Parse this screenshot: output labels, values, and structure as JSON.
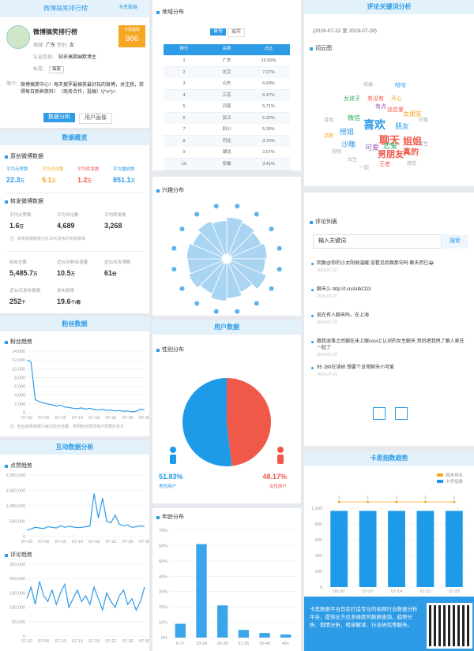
{
  "header": {
    "title": "微博搞笑排行榜",
    "logo": "卡思数据"
  },
  "profile": {
    "name": "微博搞笑排行榜",
    "score_label": "卡思指数",
    "score": 966,
    "region_label": "地域:",
    "region": "广东",
    "gender_label": "性别:",
    "gender": "女",
    "cert_label": "认证信息:",
    "cert": "知名搞笑幽默博主",
    "tag_label": "标签:",
    "tag": "搞笑",
    "intro_label": "简介:",
    "intro": "微博搞笑中心！每天搜罗最搞笑最好玩的微博，关注我，获得每日新鲜笑料！（商务合作，投稿）\\(^o^)/~"
  },
  "tabs": [
    "数据分析",
    "用户画像"
  ],
  "overview": {
    "title": "数据概览",
    "original": {
      "title": "原创微博数据",
      "stats": [
        {
          "label": "平均点赞数",
          "value": "22.3",
          "unit": "万"
        },
        {
          "label": "平均评论数",
          "value": "5.1",
          "unit": "万"
        },
        {
          "label": "平均转发数",
          "value": "1.2",
          "unit": "万"
        },
        {
          "label": "平均播放数",
          "value": "851.1",
          "unit": "万"
        }
      ]
    },
    "repost": {
      "title": "转发微博数据",
      "stats": [
        {
          "label": "平均点赞数",
          "value": "1.6",
          "unit": "万"
        },
        {
          "label": "平均评论数",
          "value": "4,689"
        },
        {
          "label": "平均转发数",
          "value": "3,268"
        }
      ],
      "note": "注：转发微博数据为近30天发布的转发微博"
    },
    "account": {
      "stats": [
        {
          "label": "粉丝总数",
          "value": "5,485.7",
          "unit": "万"
        },
        {
          "label": "近30天粉丝增量",
          "value": "10.5",
          "unit": "万"
        },
        {
          "label": "近30天发博数",
          "value": "61",
          "unit": "份"
        },
        {
          "label": "近30天发布视频",
          "value": "252",
          "unit": "个"
        },
        {
          "label": "发布频率",
          "value": "19.6",
          "unit": "个/周"
        }
      ]
    }
  },
  "fans": {
    "section": "粉丝数据",
    "title": "粉丝趋势",
    "type": "line",
    "color": "#2e9be6",
    "categories": [
      "07-02",
      null,
      null,
      null,
      "07-06",
      null,
      null,
      null,
      "07-10",
      null,
      null,
      null,
      "07-14",
      null,
      null,
      null,
      "07-18",
      null,
      null,
      null,
      "07-22",
      null,
      null,
      null,
      "07-26",
      null,
      null,
      null,
      "07-30"
    ],
    "values": [
      12000,
      11500,
      3000,
      2500,
      2200,
      2000,
      1800,
      1500,
      1700,
      1300,
      1200,
      1000,
      900,
      1100,
      800,
      1000,
      700,
      600,
      800,
      500,
      600,
      400,
      500,
      300,
      400,
      200,
      300,
      800,
      600
    ],
    "ylim": [
      0,
      14000
    ],
    "yticks": [
      0,
      {
        "value": 2000,
        "label": "2,000"
      },
      {
        "value": 4000,
        "label": "4,000"
      },
      {
        "value": 6000,
        "label": "6,000"
      },
      {
        "value": 8000,
        "label": "8,000"
      },
      {
        "value": 10000,
        "label": "10,000"
      },
      {
        "value": 12000,
        "label": "12,000"
      },
      {
        "value": 14000,
        "label": "14,000"
      }
    ],
    "note": "注：粉丝趋势数据为每日粉丝增量，表明粉丝群体用户规模的变化"
  },
  "interaction": {
    "section": "互动数据分析",
    "likes": {
      "title": "点赞趋势",
      "type": "line",
      "color": "#2e9be6",
      "categories": [
        "07-02",
        null,
        null,
        null,
        "07-06",
        null,
        null,
        null,
        "07-10",
        null,
        null,
        null,
        "07-14",
        null,
        null,
        null,
        "07-18",
        null,
        null,
        null,
        "07-22",
        null,
        null,
        null,
        "07-26",
        null,
        null,
        null,
        "07-30"
      ],
      "values": [
        210000,
        250000,
        300000,
        280000,
        260000,
        320000,
        300000,
        280000,
        350000,
        300000,
        330000,
        310000,
        290000,
        300000,
        320000,
        340000,
        1400000,
        600000,
        1250000,
        500000,
        450000,
        700000,
        400000,
        350000,
        380000,
        300000,
        320000,
        350000,
        330000
      ],
      "ylim": [
        0,
        2000000
      ],
      "yticks": [
        0,
        {
          "value": 500000,
          "label": "500,000"
        },
        {
          "value": 1000000,
          "label": "1,000,000"
        },
        {
          "value": 1500000,
          "label": "1,500,000"
        },
        {
          "value": 2000000,
          "label": "2,000,000"
        }
      ]
    },
    "comments": {
      "title": "评论趋势",
      "type": "line",
      "color": "#2e9be6",
      "categories": [
        "07-02",
        null,
        null,
        null,
        "07-06",
        null,
        null,
        null,
        "07-10",
        null,
        null,
        null,
        "07-14",
        null,
        null,
        null,
        "07-18",
        null,
        null,
        null,
        "07-22",
        null,
        null,
        null,
        "07-26",
        null,
        null,
        null,
        "07-30"
      ],
      "values": [
        130000,
        170000,
        110000,
        190000,
        140000,
        120000,
        160000,
        110000,
        150000,
        180000,
        100000,
        130000,
        160000,
        120000,
        140000,
        110000,
        170000,
        130000,
        90000,
        150000,
        120000,
        100000,
        140000,
        160000,
        110000,
        130000,
        90000,
        120000,
        170000
      ],
      "ylim": [
        0,
        250000
      ],
      "yticks": [
        0,
        {
          "value": 50000,
          "label": "50,000"
        },
        {
          "value": 100000,
          "label": "100,000"
        },
        {
          "value": 150000,
          "label": "150,000"
        },
        {
          "value": 200000,
          "label": "200,000"
        },
        {
          "value": 250000,
          "label": "250,000"
        }
      ]
    }
  },
  "region": {
    "title": "地域分布",
    "tabs": [
      "省份",
      "城市"
    ],
    "columns": [
      "排行",
      "名称",
      "占比"
    ],
    "rows": [
      [
        "1",
        "广东",
        "10.60%"
      ],
      [
        "2",
        "北京",
        "7.07%"
      ],
      [
        "3",
        "山东",
        "6.69%"
      ],
      [
        "4",
        "江苏",
        "6.47%"
      ],
      [
        "5",
        "河南",
        "5.71%"
      ],
      [
        "6",
        "浙江",
        "5.32%"
      ],
      [
        "7",
        "四川",
        "5.30%"
      ],
      [
        "8",
        "河北",
        "3.75%"
      ],
      [
        "9",
        "湖北",
        "3.67%"
      ],
      [
        "10",
        "安徽",
        "3.41%"
      ]
    ]
  },
  "interest": {
    "title": "兴趣分布",
    "type": "radial",
    "color": "#a9d4f2",
    "max": 100,
    "values": [
      85,
      80,
      75,
      82,
      78,
      88,
      72,
      80,
      86,
      76,
      84,
      79,
      81,
      74,
      83,
      77
    ]
  },
  "users": {
    "section": "用户数据",
    "gender": {
      "title": "性别分布",
      "type": "pie",
      "names": [
        "男性用户",
        "女性用户"
      ],
      "values": [
        51.83,
        48.17
      ],
      "value_labels": [
        "51.83%",
        "48.17%"
      ],
      "colors": [
        "#1e9be8",
        "#f0584a"
      ]
    },
    "age": {
      "title": "年龄分布",
      "type": "bar",
      "color": "#3aa5ea",
      "categories": [
        "6-17",
        "18-24",
        "25-30",
        "31-35",
        "36-40",
        "40+"
      ],
      "values": [
        9,
        61,
        21,
        5,
        3,
        2
      ],
      "ylim": [
        0,
        70
      ],
      "yticks": [
        {
          "value": 0,
          "label": "0%"
        },
        {
          "value": 10,
          "label": "10%"
        },
        {
          "value": 20,
          "label": "20%"
        },
        {
          "value": 30,
          "label": "30%"
        },
        {
          "value": 40,
          "label": "40%"
        },
        {
          "value": 50,
          "label": "50%"
        },
        {
          "value": 60,
          "label": "60%"
        },
        {
          "value": 70,
          "label": "70%"
        }
      ]
    }
  },
  "keywords": {
    "title": "评论关键词分析",
    "range": "(2019-07-22 至 2019-07-28)",
    "cloud_title": "词云图",
    "words": [
      "喜欢",
      "聊天",
      "姐姐",
      "男朋友",
      "可爱",
      "恋爱",
      "真的",
      "榜姐",
      "沙雕",
      "朋友",
      "女朋友",
      "微信",
      "开心",
      "有点",
      "结婚",
      "哈哈",
      "女孩子",
      "有没有",
      "谈恋爱",
      "视频",
      "王者",
      "男生",
      "好看",
      "游戏",
      "话题",
      "感觉",
      "女生",
      "一起"
    ]
  },
  "comments": {
    "title": "评论列表",
    "placeholder": "输入关键词",
    "button": "搜索",
    "items": [
      {
        "text": "回复@你的小太阳很温暖:没看见后面那句吗 聊天而已😂",
        "date": "2019-07-22"
      },
      {
        "text": "聊天么 http://t.cn/AiIbCD3",
        "date": "2019-07-22"
      },
      {
        "text": "现在有人聊天吗，在上海",
        "date": "2019-07-23"
      },
      {
        "text": "跟我宠事之后躺在床上跟soul上认识的女生聊天 然后把我甩了跟人家在一起了",
        "date": "2019-07-23"
      },
      {
        "text": "95 180在读研 想要个日常聊天小可爱",
        "date": "2019-07-24"
      }
    ]
  },
  "trend": {
    "title": "卡思指数趋势",
    "type": "bar",
    "categories": [
      "06-30",
      "07-07",
      "07-14",
      "07-21",
      "07-28"
    ],
    "series": [
      {
        "name": "榜单排名",
        "color": "#f5a623",
        "axis": "y2",
        "values": [
          1,
          1,
          1,
          1,
          1
        ]
      },
      {
        "name": "卡思指数",
        "color": "#1e9be8",
        "values": [
          966,
          966,
          966,
          966,
          966
        ]
      }
    ],
    "ylim": [
      0,
      1200
    ],
    "yticks": [
      0,
      200,
      400,
      600,
      800,
      {
        "value": 1000,
        "label": "1,000"
      }
    ],
    "y2lim": [
      10,
      0
    ]
  },
  "footer": {
    "text": "卡思数据平台旨在打造专业的视频行业数据分析平台，提供全方位多维度的数据查询、趋势分析、舆情分析、榜单解读、行业研究等服务。"
  }
}
